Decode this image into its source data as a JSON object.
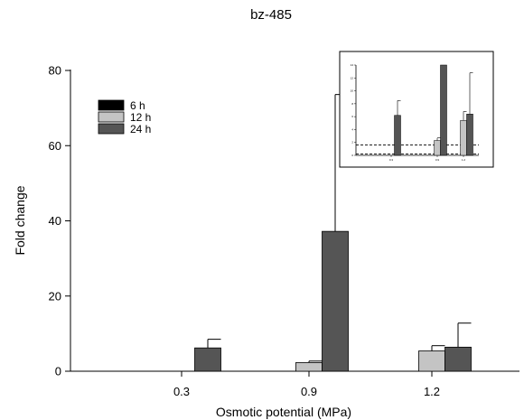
{
  "chart_data": {
    "type": "bar",
    "title": "bz-485",
    "xlabel": "Osmotic potential (MPa)",
    "ylabel": "Fold change",
    "categories": [
      "0.3",
      "0.9",
      "1.2"
    ],
    "ylim": [
      0,
      80
    ],
    "yticks": [
      "0",
      "20",
      "40",
      "60",
      "80"
    ],
    "series": [
      {
        "name": "6 h",
        "color": "#000000",
        "values": [
          0,
          0,
          0
        ],
        "errors": [
          0,
          0,
          0
        ]
      },
      {
        "name": "12 h",
        "color": "#c4c4c4",
        "values": [
          0,
          2.3,
          5.4
        ],
        "errors": [
          0,
          0.4,
          1.4
        ]
      },
      {
        "name": "24 h",
        "color": "#555555",
        "values": [
          6.2,
          37.2,
          6.4
        ],
        "errors": [
          2.3,
          36.4,
          6.4
        ]
      }
    ],
    "legend_position": "top-left",
    "inset": {
      "present": true,
      "ylim": [
        0,
        14
      ],
      "reference_lines": [
        0.2,
        1.6
      ]
    }
  }
}
